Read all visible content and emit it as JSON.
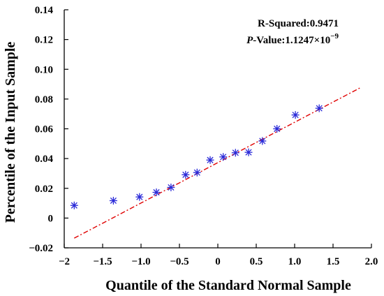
{
  "chart_data": {
    "type": "scatter",
    "title": "",
    "xlabel": "Quantile of the Standard Normal Sample",
    "ylabel": "Percentile of the Input Sample",
    "xlim": [
      -2.0,
      2.0
    ],
    "ylim": [
      -0.02,
      0.14
    ],
    "x_ticks": [
      -2.0,
      -1.5,
      -1.0,
      -0.5,
      0,
      0.5,
      1.0,
      1.5,
      2.0
    ],
    "x_tick_labels": [
      "−2",
      "−1.5",
      "−1.0",
      "−0.5",
      "0",
      "0.5",
      "1.0",
      "1.5",
      "2.0"
    ],
    "y_ticks": [
      -0.02,
      0,
      0.02,
      0.04,
      0.06,
      0.08,
      0.1,
      0.12,
      0.14
    ],
    "y_tick_labels": [
      "−0.02",
      "0",
      "0.02",
      "0.04",
      "0.06",
      "0.08",
      "0.10",
      "0.12",
      "0.14"
    ],
    "grid": false,
    "series": [
      {
        "marker": "asterisk",
        "color": "#2a2ad8",
        "points": [
          {
            "x": -1.87,
            "y": 0.0085
          },
          {
            "x": -1.36,
            "y": 0.0117
          },
          {
            "x": -1.02,
            "y": 0.0142
          },
          {
            "x": -0.8,
            "y": 0.0173
          },
          {
            "x": -0.61,
            "y": 0.0206
          },
          {
            "x": -0.42,
            "y": 0.0291
          },
          {
            "x": -0.27,
            "y": 0.0306
          },
          {
            "x": -0.1,
            "y": 0.039
          },
          {
            "x": 0.07,
            "y": 0.0411
          },
          {
            "x": 0.23,
            "y": 0.0439
          },
          {
            "x": 0.4,
            "y": 0.0442
          },
          {
            "x": 0.58,
            "y": 0.0518
          },
          {
            "x": 0.77,
            "y": 0.06
          },
          {
            "x": 1.01,
            "y": 0.0693
          },
          {
            "x": 1.32,
            "y": 0.0738
          }
        ]
      }
    ],
    "fit_line": {
      "color": "#e00000",
      "style": "dash-dot",
      "x": [
        -1.87,
        1.87
      ],
      "y": [
        -0.0135,
        0.088
      ]
    },
    "annotations": [
      {
        "key": "r_squared",
        "label": "R-Squared:",
        "value": "0.9471"
      },
      {
        "key": "p_value",
        "label_italic": "P",
        "label_rest": "-Value:",
        "mantissa": "1.1247×10",
        "exponent": "−9"
      }
    ]
  }
}
